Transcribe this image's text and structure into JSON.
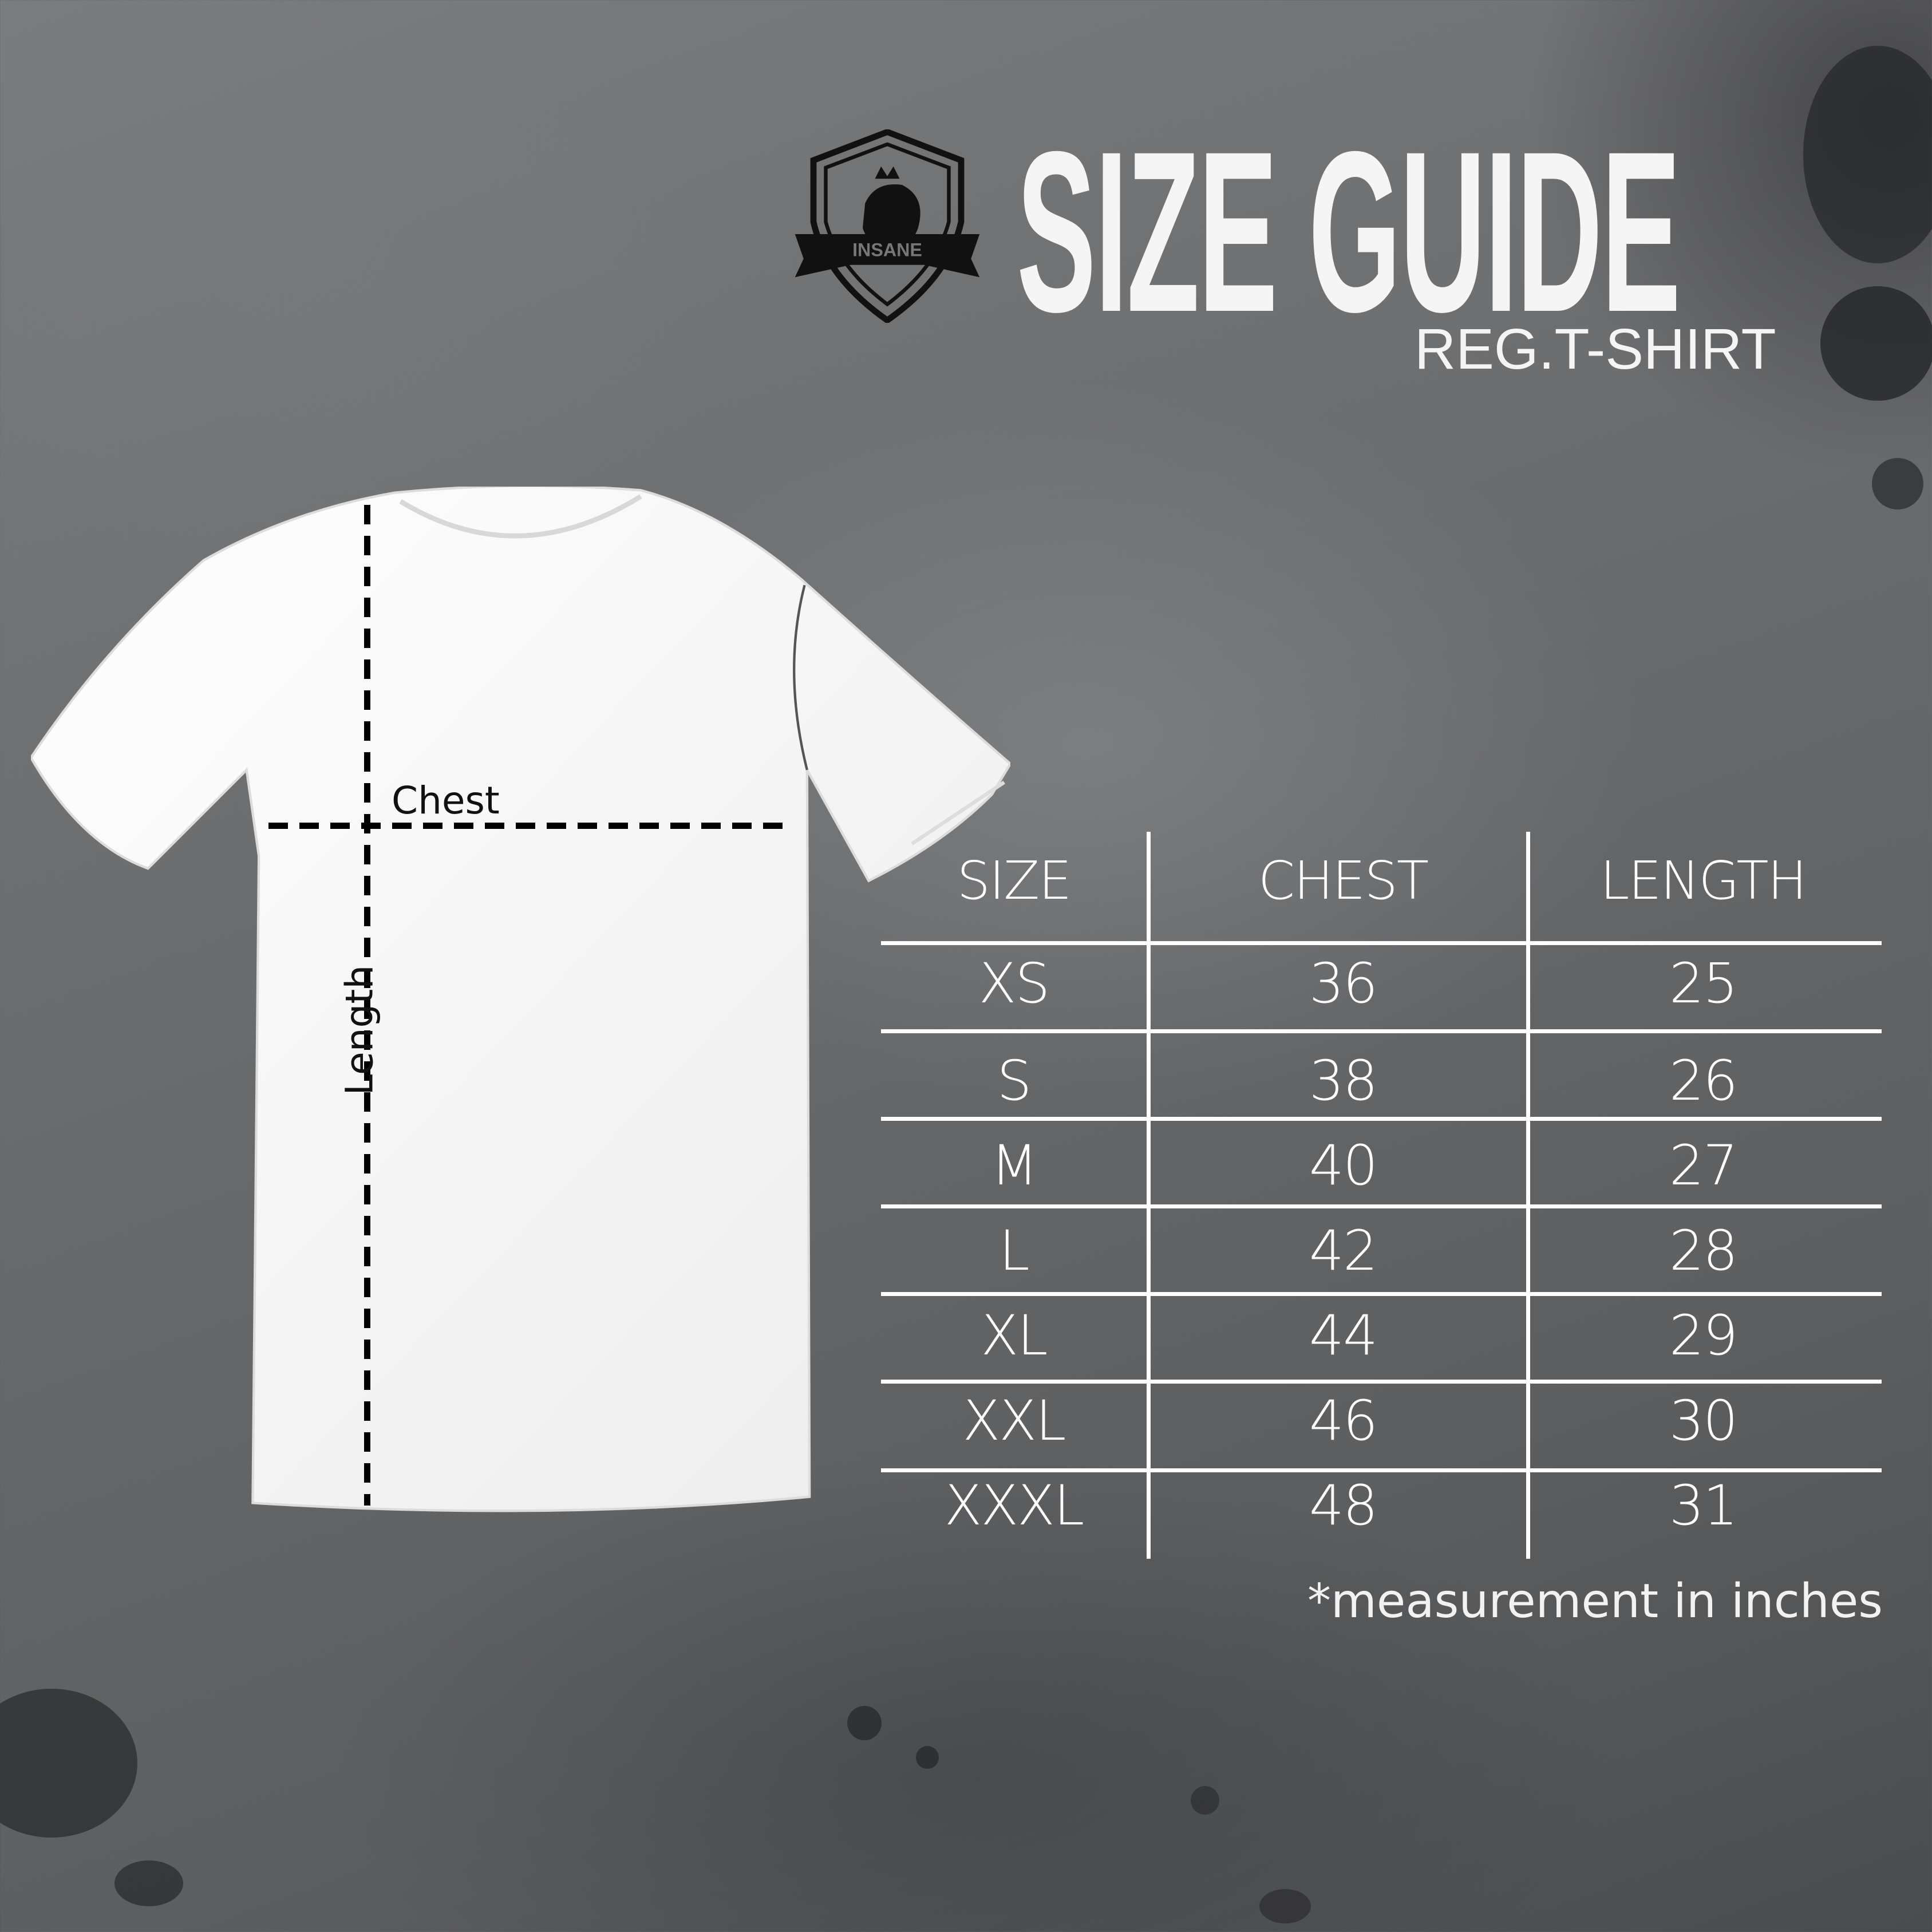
{
  "brand": {
    "logo_text": "INSANE"
  },
  "header": {
    "title": "SIZE GUIDE",
    "subtitle": "REG.T-SHIRT"
  },
  "diagram": {
    "chest_label": "Chest",
    "length_label": "Length"
  },
  "table": {
    "columns": [
      "SIZE",
      "CHEST",
      "LENGTH"
    ],
    "rows": [
      [
        "XS",
        "36",
        "25"
      ],
      [
        "S",
        "38",
        "26"
      ],
      [
        "M",
        "40",
        "27"
      ],
      [
        "L",
        "42",
        "28"
      ],
      [
        "XL",
        "44",
        "29"
      ],
      [
        "XXL",
        "46",
        "30"
      ],
      [
        "XXXL",
        "48",
        "31"
      ]
    ]
  },
  "footnote": "*measurement in inches",
  "colors": {
    "background": "#6a6c6e",
    "text": "#f5f5f5",
    "lines": "#ffffff",
    "shirt": "#f6f6f6",
    "dash": "#000000"
  }
}
